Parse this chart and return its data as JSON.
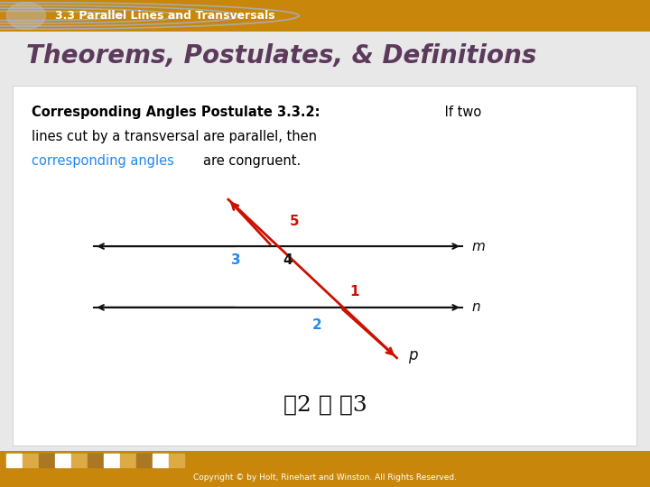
{
  "header_bg": "#C8870A",
  "header_text": "3.3 Parallel Lines and Transversals",
  "header_text_color": "#FFFFFF",
  "title_text": "Theorems, Postulates, & Definitions",
  "title_color": "#5C3A5C",
  "slide_bg": "#E8E8E8",
  "bold_label": "Corresponding Angles Postulate 3.3.2:",
  "line1_normal": " If two",
  "line2_text": "lines cut by a transversal are parallel, then",
  "blue_text": "corresponding angles",
  "blue_color": "#2288EE",
  "end_text": "are congruent.",
  "footer_text": "Copyright © by Holt, Rinehart and Winston. All Rights Reserved.",
  "footer_bg": "#C8870A",
  "footer_text_color": "#FFFFFF",
  "red_color": "#CC1100",
  "blue_num_color": "#2288EE",
  "black_color": "#111111"
}
